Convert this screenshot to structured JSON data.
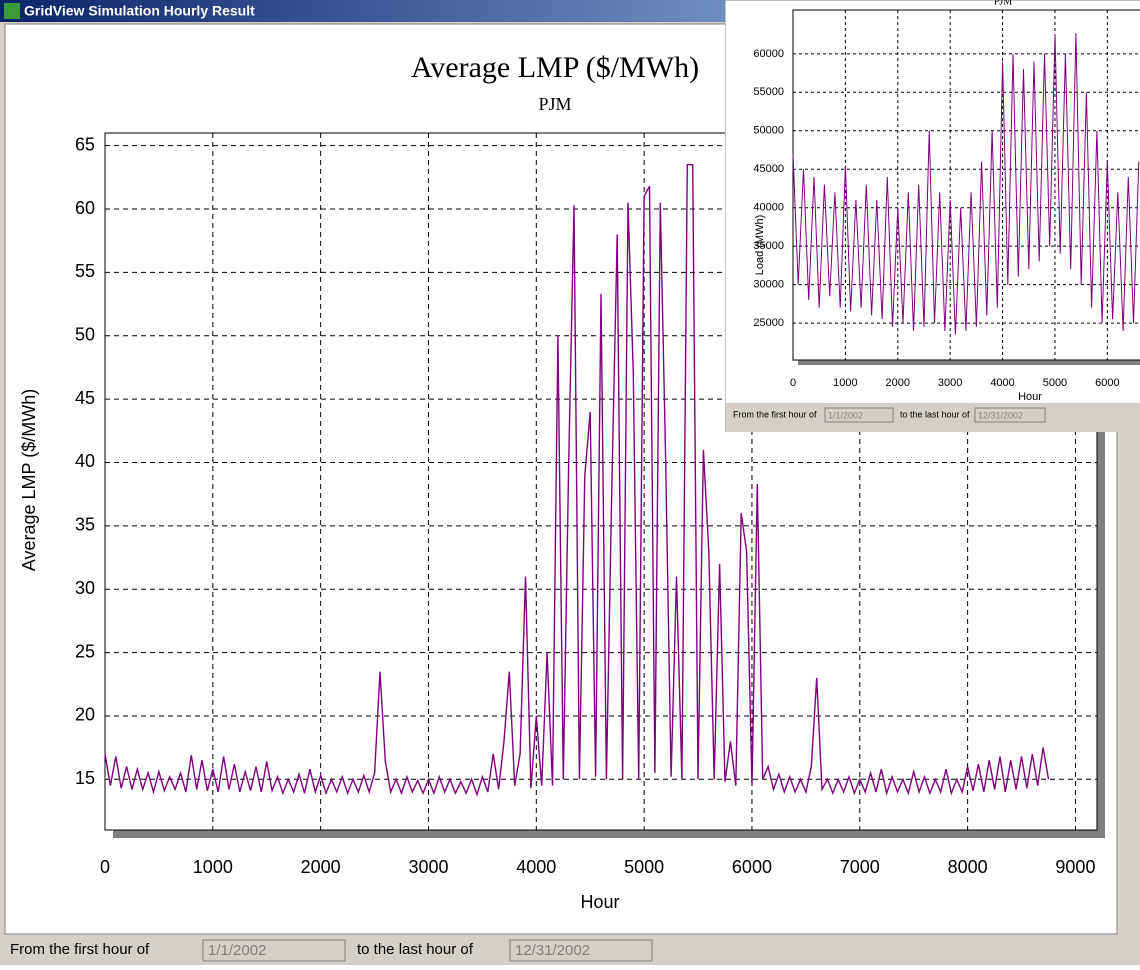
{
  "window": {
    "title": "GridView Simulation Hourly Result",
    "footer": {
      "from_label": "From the first hour of",
      "from_value": "1/1/2002",
      "to_label": "to the last hour of",
      "to_value": "12/31/2002"
    }
  },
  "inset_window": {
    "footer": {
      "from_label": "From the first hour of",
      "from_value": "1/1/2002",
      "to_label": "to the last hour of",
      "to_value": "12/31/2002"
    }
  },
  "chart_data": [
    {
      "type": "line",
      "title": "Average LMP ($/MWh)",
      "subtitle": "PJM",
      "x_label": "Hour",
      "y_label": "Average LMP ($/MWh)",
      "color": "#800080",
      "grid": true,
      "xlim": [
        0,
        9200
      ],
      "xticks": [
        0,
        1000,
        2000,
        3000,
        4000,
        5000,
        6000,
        7000,
        8000,
        9000
      ],
      "ylim": [
        11,
        66
      ],
      "yticks": [
        15,
        20,
        25,
        30,
        35,
        40,
        45,
        50,
        55,
        60,
        65
      ],
      "x": [
        0,
        50,
        100,
        150,
        200,
        250,
        300,
        350,
        400,
        450,
        500,
        550,
        600,
        650,
        700,
        750,
        800,
        850,
        900,
        950,
        1000,
        1050,
        1100,
        1150,
        1200,
        1250,
        1300,
        1350,
        1400,
        1450,
        1500,
        1550,
        1600,
        1650,
        1700,
        1750,
        1800,
        1850,
        1900,
        1950,
        2000,
        2050,
        2100,
        2150,
        2200,
        2250,
        2300,
        2350,
        2400,
        2450,
        2500,
        2550,
        2600,
        2650,
        2700,
        2750,
        2800,
        2850,
        2900,
        2950,
        3000,
        3050,
        3100,
        3150,
        3200,
        3250,
        3300,
        3350,
        3400,
        3450,
        3500,
        3550,
        3600,
        3650,
        3700,
        3750,
        3800,
        3850,
        3900,
        3950,
        4000,
        4050,
        4100,
        4150,
        4200,
        4250,
        4300,
        4350,
        4400,
        4450,
        4500,
        4550,
        4600,
        4650,
        4700,
        4750,
        4800,
        4850,
        4900,
        4950,
        5000,
        5050,
        5100,
        5150,
        5200,
        5250,
        5300,
        5350,
        5400,
        5450,
        5500,
        5550,
        5600,
        5650,
        5700,
        5750,
        5800,
        5850,
        5900,
        5950,
        6000,
        6050,
        6100,
        6150,
        6200,
        6250,
        6300,
        6350,
        6400,
        6450,
        6500,
        6550,
        6600,
        6650,
        6700,
        6750,
        6800,
        6850,
        6900,
        6950,
        7000,
        7050,
        7100,
        7150,
        7200,
        7250,
        7300,
        7350,
        7400,
        7450,
        7500,
        7550,
        7600,
        7650,
        7700,
        7750,
        7800,
        7850,
        7900,
        7950,
        8000,
        8050,
        8100,
        8150,
        8200,
        8250,
        8300,
        8350,
        8400,
        8450,
        8500,
        8550,
        8600,
        8650,
        8700,
        8750
      ],
      "values": [
        17,
        14.5,
        16.8,
        14.3,
        16,
        14.2,
        15.8,
        14.2,
        15.5,
        14.0,
        15.6,
        14.1,
        15.2,
        14.2,
        15.5,
        14.0,
        16.9,
        14.2,
        16.5,
        14.1,
        15.8,
        14.0,
        16.8,
        14.2,
        16.2,
        14.0,
        15.6,
        14.1,
        16.0,
        14.0,
        16.4,
        14.1,
        15.2,
        13.9,
        15.0,
        14.0,
        15.4,
        13.9,
        15.8,
        14.0,
        15.3,
        13.9,
        15.0,
        14.0,
        15.2,
        13.9,
        15.0,
        14.0,
        15.3,
        14.0,
        15.5,
        23.5,
        16.4,
        14.0,
        15.0,
        13.9,
        15.2,
        14.0,
        14.9,
        13.9,
        15.0,
        13.9,
        15.2,
        14.0,
        15.0,
        13.9,
        14.8,
        13.9,
        15.0,
        13.8,
        15.2,
        14.0,
        17.0,
        14.2,
        18.0,
        23.5,
        14.5,
        17.0,
        31.0,
        14.3,
        20.0,
        14.5,
        25.0,
        14.5,
        50.0,
        15.0,
        40.0,
        60.3,
        15.0,
        39.0,
        44.0,
        15.2,
        53.3,
        15.0,
        38.0,
        58.0,
        15.0,
        60.5,
        47.0,
        15.0,
        61.0,
        61.8,
        15.5,
        60.5,
        40.0,
        15.2,
        31.0,
        15.0,
        63.5,
        63.5,
        15.0,
        41.0,
        33.0,
        15.0,
        32.0,
        14.8,
        18.0,
        14.5,
        36.0,
        33.0,
        14.5,
        38.3,
        15.0,
        16.0,
        14.2,
        15.4,
        14.0,
        15.2,
        14.0,
        15.0,
        14.0,
        16.0,
        23.0,
        14.2,
        15.0,
        13.9,
        15.0,
        14.0,
        15.2,
        13.9,
        15.0,
        14.0,
        15.5,
        14.0,
        15.8,
        13.9,
        15.2,
        14.0,
        15.0,
        13.9,
        15.6,
        14.0,
        15.2,
        13.9,
        15.0,
        14.0,
        15.8,
        13.9,
        15.0,
        14.0,
        16.0,
        14.1,
        16.2,
        14.0,
        16.5,
        14.2,
        16.8,
        14.0,
        16.5,
        14.2,
        16.8,
        14.3,
        17.0,
        14.5,
        17.5,
        15.0
      ]
    },
    {
      "type": "line",
      "title": "PJM",
      "x_label": "Hour",
      "y_label": "Load (MWh)",
      "color": "#800080",
      "grid": true,
      "xlim": [
        0,
        9200
      ],
      "xticks": [
        0,
        1000,
        2000,
        3000,
        4000,
        5000,
        6000
      ],
      "ylim": [
        20200,
        65700
      ],
      "yticks": [
        25000,
        30000,
        35000,
        40000,
        45000,
        50000,
        55000,
        60000
      ],
      "x": [
        0,
        100,
        200,
        300,
        400,
        500,
        600,
        700,
        800,
        900,
        1000,
        1100,
        1200,
        1300,
        1400,
        1500,
        1600,
        1700,
        1800,
        1900,
        2000,
        2100,
        2200,
        2300,
        2400,
        2500,
        2600,
        2700,
        2800,
        2900,
        3000,
        3100,
        3200,
        3300,
        3400,
        3500,
        3600,
        3700,
        3800,
        3900,
        4000,
        4100,
        4200,
        4300,
        4400,
        4500,
        4600,
        4700,
        4800,
        4900,
        5000,
        5100,
        5200,
        5300,
        5400,
        5500,
        5600,
        5700,
        5800,
        5900,
        6000,
        6100,
        6200,
        6300,
        6400,
        6500,
        6600
      ],
      "values": [
        47000,
        30000,
        45000,
        28000,
        44000,
        27000,
        43000,
        28500,
        42000,
        27000,
        45500,
        26500,
        41000,
        27000,
        43000,
        26000,
        41000,
        25500,
        44000,
        24500,
        40000,
        25000,
        42000,
        24000,
        43000,
        24500,
        50000,
        25000,
        42000,
        24000,
        41000,
        23500,
        40000,
        24000,
        42000,
        24500,
        46000,
        26000,
        50000,
        27000,
        59000,
        30000,
        60000,
        31000,
        58000,
        32000,
        59000,
        33000,
        60000,
        35000,
        62500,
        34000,
        60000,
        32000,
        62700,
        30000,
        55000,
        27000,
        50000,
        25000,
        46000,
        25500,
        42000,
        24000,
        44000,
        25000,
        46000
      ]
    }
  ]
}
